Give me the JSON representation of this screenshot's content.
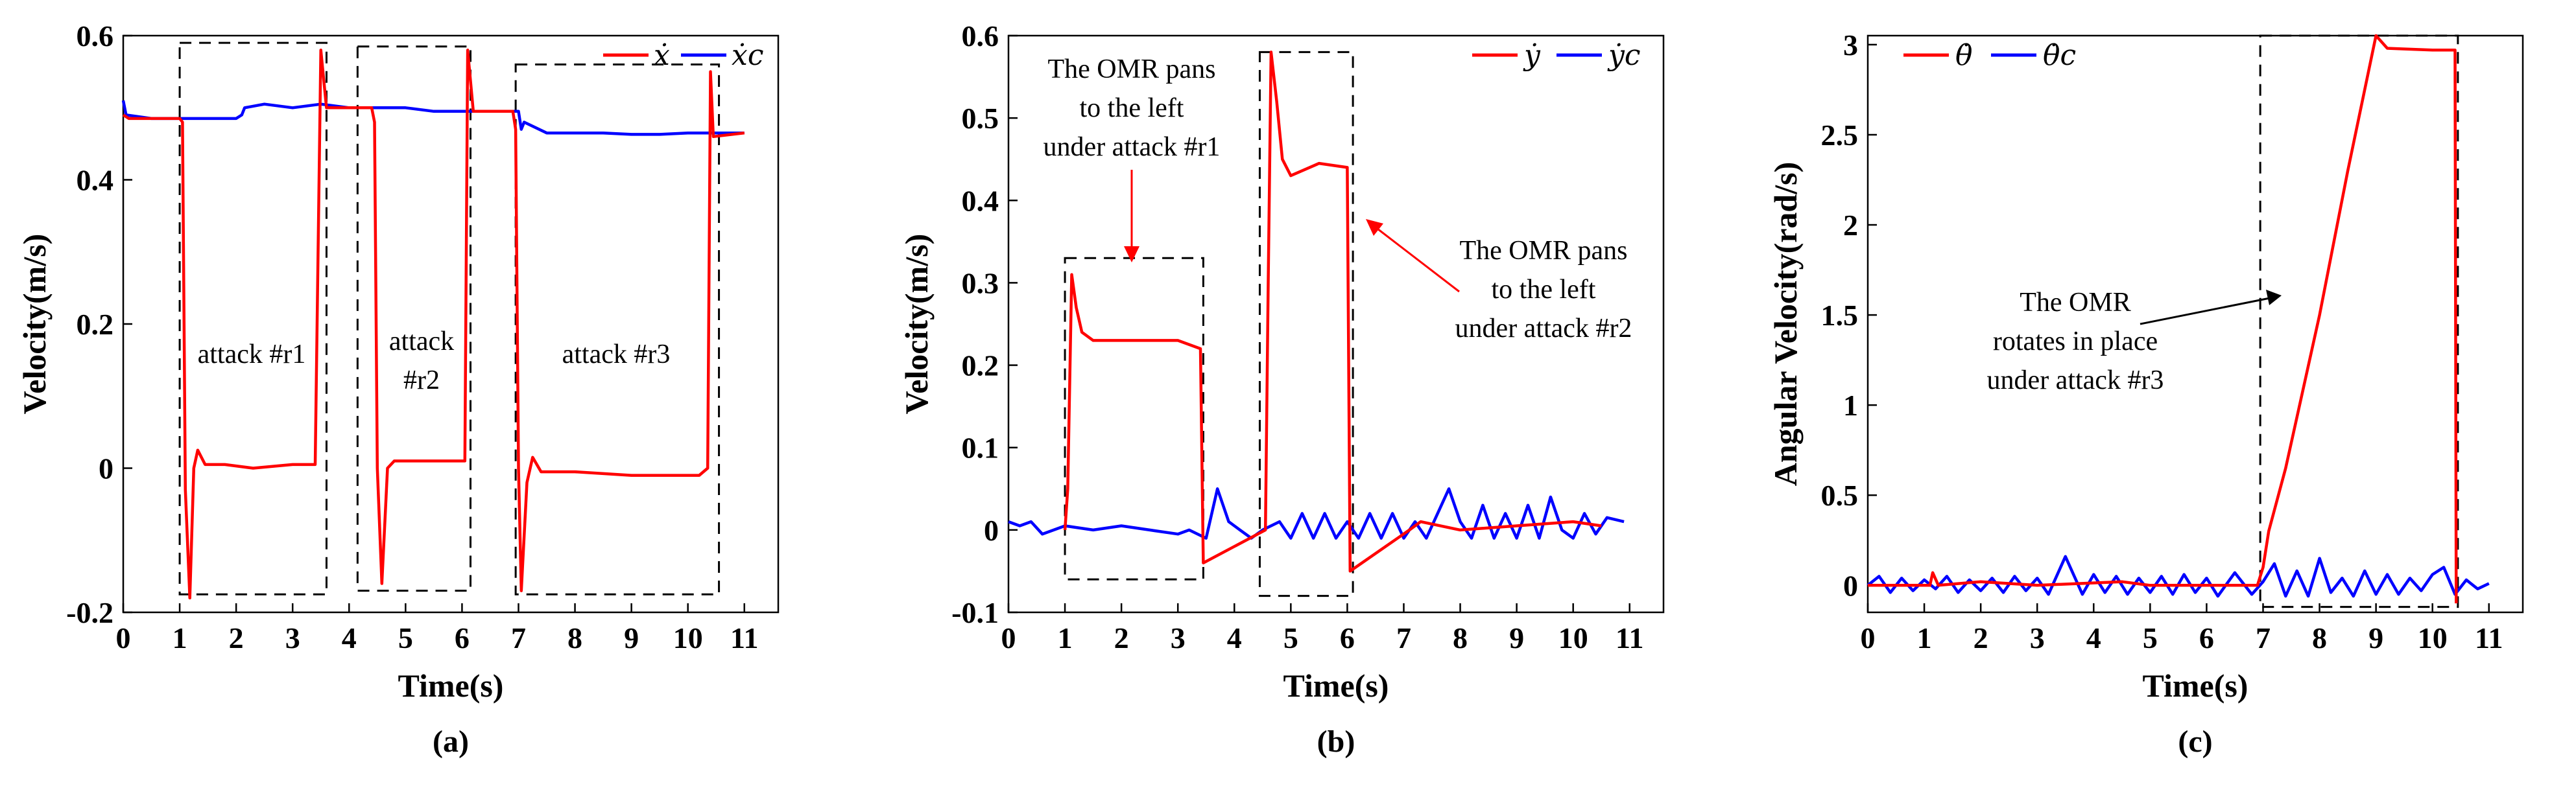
{
  "chart_data": [
    {
      "type": "line",
      "caption": "(a)",
      "xlabel": "Time(s)",
      "ylabel": "Velocity(m/s)",
      "xlim": [
        0,
        11.6
      ],
      "ylim": [
        -0.2,
        0.6
      ],
      "xticks": [
        0,
        1,
        2,
        3,
        4,
        5,
        6,
        7,
        8,
        9,
        10,
        11
      ],
      "yticks": [
        -0.2,
        0,
        0.2,
        0.4,
        0.6
      ],
      "yticklabels": [
        "-0.2",
        "0",
        "0.2",
        "0.4",
        "0.6"
      ],
      "legend": [
        "ẋ",
        "ẋc"
      ],
      "series": [
        {
          "name": "ẋ",
          "color": "#ff0000",
          "points": [
            [
              0,
              0.49
            ],
            [
              0.1,
              0.485
            ],
            [
              1.0,
              0.485
            ],
            [
              1.05,
              0.48
            ],
            [
              1.1,
              -0.03
            ],
            [
              1.18,
              -0.18
            ],
            [
              1.25,
              0.0
            ],
            [
              1.32,
              0.025
            ],
            [
              1.45,
              0.005
            ],
            [
              1.8,
              0.005
            ],
            [
              2.3,
              0.0
            ],
            [
              3.0,
              0.005
            ],
            [
              3.4,
              0.005
            ],
            [
              3.5,
              0.58
            ],
            [
              3.6,
              0.5
            ],
            [
              4.4,
              0.5
            ],
            [
              4.45,
              0.48
            ],
            [
              4.5,
              0.0
            ],
            [
              4.58,
              -0.16
            ],
            [
              4.68,
              0.0
            ],
            [
              4.8,
              0.01
            ],
            [
              5.2,
              0.01
            ],
            [
              5.6,
              0.01
            ],
            [
              6.05,
              0.01
            ],
            [
              6.1,
              0.58
            ],
            [
              6.2,
              0.495
            ],
            [
              6.9,
              0.495
            ],
            [
              6.95,
              0.47
            ],
            [
              7.0,
              0.0
            ],
            [
              7.05,
              -0.17
            ],
            [
              7.15,
              -0.02
            ],
            [
              7.25,
              0.015
            ],
            [
              7.4,
              -0.005
            ],
            [
              8,
              -0.005
            ],
            [
              9,
              -0.01
            ],
            [
              10.2,
              -0.01
            ],
            [
              10.35,
              0.0
            ],
            [
              10.4,
              0.55
            ],
            [
              10.45,
              0.46
            ],
            [
              11,
              0.465
            ]
          ]
        },
        {
          "name": "ẋc",
          "color": "#0000ff",
          "points": [
            [
              0,
              0.51
            ],
            [
              0.05,
              0.49
            ],
            [
              0.5,
              0.485
            ],
            [
              1.0,
              0.485
            ],
            [
              1.5,
              0.485
            ],
            [
              2.0,
              0.485
            ],
            [
              2.1,
              0.49
            ],
            [
              2.15,
              0.5
            ],
            [
              2.5,
              0.505
            ],
            [
              3.0,
              0.5
            ],
            [
              3.5,
              0.505
            ],
            [
              4.0,
              0.5
            ],
            [
              4.5,
              0.5
            ],
            [
              5.0,
              0.5
            ],
            [
              5.5,
              0.495
            ],
            [
              6.0,
              0.495
            ],
            [
              6.5,
              0.495
            ],
            [
              7.0,
              0.495
            ],
            [
              7.05,
              0.47
            ],
            [
              7.1,
              0.48
            ],
            [
              7.5,
              0.465
            ],
            [
              8.0,
              0.465
            ],
            [
              8.5,
              0.465
            ],
            [
              9.0,
              0.463
            ],
            [
              9.5,
              0.463
            ],
            [
              10.0,
              0.465
            ],
            [
              10.5,
              0.465
            ],
            [
              11.0,
              0.465
            ]
          ]
        }
      ],
      "attack_boxes": [
        [
          1.0,
          3.6,
          -0.175,
          0.59
        ],
        [
          4.15,
          6.15,
          -0.17,
          0.585
        ],
        [
          6.95,
          10.55,
          -0.175,
          0.56
        ]
      ],
      "annotations": [
        "attack #r1",
        "attack",
        "#r2",
        "attack #r3"
      ]
    },
    {
      "type": "line",
      "caption": "(b)",
      "xlabel": "Time(s)",
      "ylabel": "Velocity(m/s)",
      "xlim": [
        0,
        11.6
      ],
      "ylim": [
        -0.1,
        0.6
      ],
      "xticks": [
        0,
        1,
        2,
        3,
        4,
        5,
        6,
        7,
        8,
        9,
        10,
        11
      ],
      "yticks": [
        -0.1,
        0,
        0.1,
        0.2,
        0.3,
        0.4,
        0.5,
        0.6
      ],
      "yticklabels": [
        "-0.1",
        "0",
        "0.1",
        "0.2",
        "0.3",
        "0.4",
        "0.5",
        "0.6"
      ],
      "legend": [
        "ẏ",
        "ẏc"
      ],
      "series": [
        {
          "name": "ẏ",
          "color": "#ff0000",
          "points": [
            [
              1.0,
              0.0
            ],
            [
              1.05,
              0.05
            ],
            [
              1.12,
              0.31
            ],
            [
              1.2,
              0.27
            ],
            [
              1.3,
              0.24
            ],
            [
              1.5,
              0.23
            ],
            [
              2.0,
              0.23
            ],
            [
              2.5,
              0.23
            ],
            [
              3.0,
              0.23
            ],
            [
              3.4,
              0.22
            ],
            [
              3.45,
              -0.04
            ],
            [
              4.55,
              0.0
            ],
            [
              4.6,
              0.3
            ],
            [
              4.65,
              0.58
            ],
            [
              4.75,
              0.52
            ],
            [
              4.85,
              0.45
            ],
            [
              5.0,
              0.43
            ],
            [
              5.5,
              0.445
            ],
            [
              6.0,
              0.44
            ],
            [
              6.05,
              -0.05
            ],
            [
              7.1,
              0.0
            ],
            [
              7.3,
              0.01
            ],
            [
              8.0,
              0.0
            ],
            [
              9.0,
              0.005
            ],
            [
              10.0,
              0.01
            ],
            [
              10.5,
              0.005
            ]
          ]
        },
        {
          "name": "ẏc",
          "color": "#0000ff",
          "points": [
            [
              0,
              0.01
            ],
            [
              0.2,
              0.005
            ],
            [
              0.4,
              0.01
            ],
            [
              0.6,
              -0.005
            ],
            [
              0.8,
              0.0
            ],
            [
              1.0,
              0.005
            ],
            [
              1.5,
              0.0
            ],
            [
              2.0,
              0.005
            ],
            [
              2.5,
              0.0
            ],
            [
              3.0,
              -0.005
            ],
            [
              3.2,
              0.0
            ],
            [
              3.5,
              -0.01
            ],
            [
              3.7,
              0.05
            ],
            [
              3.9,
              0.01
            ],
            [
              4.1,
              0.0
            ],
            [
              4.3,
              -0.01
            ],
            [
              4.5,
              0.0
            ],
            [
              4.8,
              0.01
            ],
            [
              5.0,
              -0.01
            ],
            [
              5.2,
              0.02
            ],
            [
              5.4,
              -0.01
            ],
            [
              5.6,
              0.02
            ],
            [
              5.8,
              -0.01
            ],
            [
              6.0,
              0.01
            ],
            [
              6.2,
              -0.01
            ],
            [
              6.4,
              0.02
            ],
            [
              6.6,
              -0.01
            ],
            [
              6.8,
              0.02
            ],
            [
              7.0,
              -0.01
            ],
            [
              7.2,
              0.01
            ],
            [
              7.4,
              -0.01
            ],
            [
              7.6,
              0.02
            ],
            [
              7.8,
              0.05
            ],
            [
              8.0,
              0.01
            ],
            [
              8.2,
              -0.01
            ],
            [
              8.4,
              0.03
            ],
            [
              8.6,
              -0.01
            ],
            [
              8.8,
              0.02
            ],
            [
              9.0,
              -0.01
            ],
            [
              9.2,
              0.03
            ],
            [
              9.4,
              -0.01
            ],
            [
              9.6,
              0.04
            ],
            [
              9.8,
              0.0
            ],
            [
              10.0,
              -0.01
            ],
            [
              10.2,
              0.02
            ],
            [
              10.4,
              -0.005
            ],
            [
              10.6,
              0.015
            ],
            [
              10.9,
              0.01
            ]
          ]
        }
      ],
      "attack_boxes": [
        [
          1.0,
          3.45,
          -0.06,
          0.33
        ],
        [
          4.45,
          6.1,
          -0.08,
          0.58
        ]
      ],
      "annotations": [
        "The OMR pans",
        "to the left",
        "under attack #r1",
        "The OMR pans",
        "to the left",
        "under attack #r2"
      ]
    },
    {
      "type": "line",
      "caption": "(c)",
      "xlabel": "Time(s)",
      "ylabel": "Angular Velocity(rad/s)",
      "xlim": [
        0,
        11.6
      ],
      "ylim": [
        -0.15,
        3.05
      ],
      "xticks": [
        0,
        1,
        2,
        3,
        4,
        5,
        6,
        7,
        8,
        9,
        10,
        11
      ],
      "yticks": [
        0,
        0.5,
        1,
        1.5,
        2,
        2.5,
        3
      ],
      "yticklabels": [
        "0",
        "0.5",
        "1",
        "1.5",
        "2",
        "2.5",
        "3"
      ],
      "legend": [
        "θ̇",
        "θ̇c"
      ],
      "series": [
        {
          "name": "θ̇",
          "color": "#ff0000",
          "points": [
            [
              0,
              0.0
            ],
            [
              1.1,
              0.0
            ],
            [
              1.15,
              0.07
            ],
            [
              1.25,
              0.0
            ],
            [
              2.0,
              0.02
            ],
            [
              3.0,
              0.0
            ],
            [
              4.5,
              0.02
            ],
            [
              5.0,
              0.0
            ],
            [
              6.0,
              0.0
            ],
            [
              6.9,
              0.0
            ],
            [
              7.0,
              0.1
            ],
            [
              7.1,
              0.3
            ],
            [
              7.4,
              0.65
            ],
            [
              8.0,
              1.5
            ],
            [
              8.5,
              2.3
            ],
            [
              9.0,
              3.05
            ],
            [
              9.2,
              2.98
            ],
            [
              10.0,
              2.97
            ],
            [
              10.4,
              2.97
            ],
            [
              10.42,
              -0.1
            ]
          ]
        },
        {
          "name": "θ̇c",
          "color": "#0000ff",
          "points": [
            [
              0,
              0.0
            ],
            [
              0.2,
              0.05
            ],
            [
              0.4,
              -0.04
            ],
            [
              0.6,
              0.04
            ],
            [
              0.8,
              -0.03
            ],
            [
              1.0,
              0.03
            ],
            [
              1.2,
              -0.02
            ],
            [
              1.4,
              0.05
            ],
            [
              1.6,
              -0.04
            ],
            [
              1.8,
              0.03
            ],
            [
              2.0,
              -0.03
            ],
            [
              2.2,
              0.04
            ],
            [
              2.4,
              -0.04
            ],
            [
              2.6,
              0.05
            ],
            [
              2.8,
              -0.03
            ],
            [
              3.0,
              0.04
            ],
            [
              3.2,
              -0.05
            ],
            [
              3.5,
              0.16
            ],
            [
              3.8,
              -0.05
            ],
            [
              4.0,
              0.06
            ],
            [
              4.2,
              -0.04
            ],
            [
              4.4,
              0.05
            ],
            [
              4.6,
              -0.05
            ],
            [
              4.8,
              0.04
            ],
            [
              5.0,
              -0.04
            ],
            [
              5.2,
              0.05
            ],
            [
              5.4,
              -0.05
            ],
            [
              5.6,
              0.06
            ],
            [
              5.8,
              -0.04
            ],
            [
              6.0,
              0.04
            ],
            [
              6.2,
              -0.06
            ],
            [
              6.5,
              0.07
            ],
            [
              6.8,
              -0.05
            ],
            [
              7.0,
              0.02
            ],
            [
              7.2,
              0.12
            ],
            [
              7.4,
              -0.06
            ],
            [
              7.6,
              0.08
            ],
            [
              7.8,
              -0.06
            ],
            [
              8.0,
              0.15
            ],
            [
              8.2,
              -0.04
            ],
            [
              8.4,
              0.04
            ],
            [
              8.6,
              -0.06
            ],
            [
              8.8,
              0.08
            ],
            [
              9.0,
              -0.05
            ],
            [
              9.2,
              0.06
            ],
            [
              9.4,
              -0.05
            ],
            [
              9.6,
              0.04
            ],
            [
              9.8,
              -0.03
            ],
            [
              10.0,
              0.06
            ],
            [
              10.2,
              0.1
            ],
            [
              10.4,
              -0.05
            ],
            [
              10.6,
              0.03
            ],
            [
              10.8,
              -0.02
            ],
            [
              11.0,
              0.01
            ]
          ]
        }
      ],
      "attack_boxes": [
        [
          6.95,
          10.45,
          -0.12,
          3.05
        ]
      ],
      "annotations": [
        "The OMR",
        "rotates in place",
        "under attack #r3"
      ]
    }
  ]
}
